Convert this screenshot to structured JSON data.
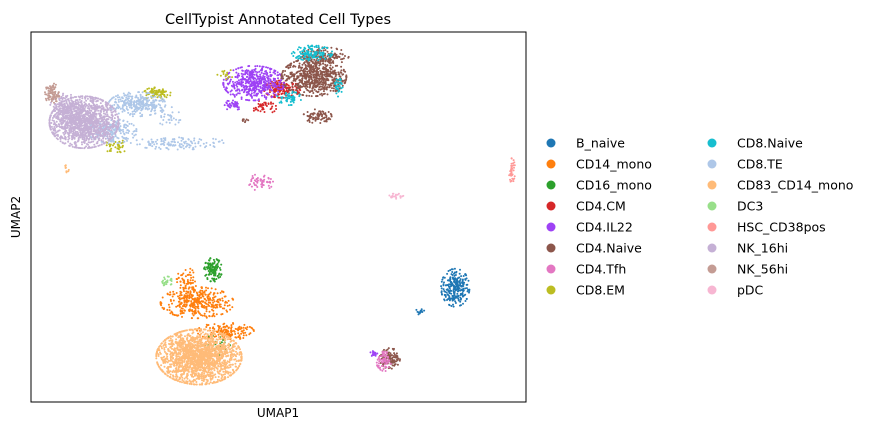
{
  "chart_data": {
    "type": "scatter",
    "title": "CellTypist Annotated Cell Types",
    "xlabel": "UMAP1",
    "ylabel": "UMAP2",
    "ticks_shown": false,
    "grid": false,
    "legend_position": "right",
    "legend_columns": 2,
    "series": [
      {
        "name": "B_naive",
        "color": "#1f77b4",
        "clusters": [
          {
            "cx": 12.6,
            "cy": 1.9,
            "rx": 0.35,
            "ry": 0.55,
            "n": 260
          },
          {
            "cx": 11.6,
            "cy": 1.1,
            "rx": 0.12,
            "ry": 0.08,
            "n": 12
          }
        ]
      },
      {
        "name": "CD14_mono",
        "color": "#ff7f0e",
        "clusters": [
          {
            "cx": 5.3,
            "cy": 1.4,
            "rx": 0.9,
            "ry": 0.45,
            "n": 380
          },
          {
            "cx": 6.1,
            "cy": 0.45,
            "rx": 0.7,
            "ry": 0.25,
            "n": 150
          },
          {
            "cx": 5.0,
            "cy": 2.1,
            "rx": 0.25,
            "ry": 0.4,
            "n": 60
          }
        ]
      },
      {
        "name": "CD16_mono",
        "color": "#2ca02c",
        "clusters": [
          {
            "cx": 5.75,
            "cy": 2.5,
            "rx": 0.22,
            "ry": 0.35,
            "n": 120
          },
          {
            "cx": 5.9,
            "cy": 0.0,
            "rx": 0.4,
            "ry": 0.3,
            "n": 30
          }
        ]
      },
      {
        "name": "CD4.CM",
        "color": "#d62728",
        "clusters": [
          {
            "cx": 7.7,
            "cy": 8.5,
            "rx": 0.45,
            "ry": 0.25,
            "n": 160
          },
          {
            "cx": 7.2,
            "cy": 7.9,
            "rx": 0.3,
            "ry": 0.2,
            "n": 40
          }
        ]
      },
      {
        "name": "CD4.IL22",
        "color": "#9e42f5",
        "clusters": [
          {
            "cx": 6.9,
            "cy": 8.7,
            "rx": 0.75,
            "ry": 0.5,
            "n": 480
          },
          {
            "cx": 6.3,
            "cy": 8.0,
            "rx": 0.25,
            "ry": 0.18,
            "n": 40
          },
          {
            "cx": 10.3,
            "cy": -0.3,
            "rx": 0.1,
            "ry": 0.1,
            "n": 15
          }
        ]
      },
      {
        "name": "CD4.Naive",
        "color": "#8c564b",
        "clusters": [
          {
            "cx": 8.6,
            "cy": 8.9,
            "rx": 0.8,
            "ry": 0.55,
            "n": 620
          },
          {
            "cx": 8.9,
            "cy": 9.6,
            "rx": 0.6,
            "ry": 0.25,
            "n": 150
          },
          {
            "cx": 8.7,
            "cy": 7.6,
            "rx": 0.35,
            "ry": 0.2,
            "n": 80
          },
          {
            "cx": 10.75,
            "cy": -0.45,
            "rx": 0.25,
            "ry": 0.3,
            "n": 110
          },
          {
            "cx": 6.65,
            "cy": 7.45,
            "rx": 0.1,
            "ry": 0.06,
            "n": 8
          }
        ]
      },
      {
        "name": "CD4.Tfh",
        "color": "#e377c2",
        "clusters": [
          {
            "cx": 7.1,
            "cy": 5.4,
            "rx": 0.3,
            "ry": 0.25,
            "n": 55
          },
          {
            "cx": 10.6,
            "cy": -0.55,
            "rx": 0.2,
            "ry": 0.28,
            "n": 70
          }
        ]
      },
      {
        "name": "CD8.EM",
        "color": "#bcbd22",
        "clusters": [
          {
            "cx": 4.15,
            "cy": 8.35,
            "rx": 0.35,
            "ry": 0.18,
            "n": 90
          },
          {
            "cx": 3.0,
            "cy": 6.6,
            "rx": 0.3,
            "ry": 0.2,
            "n": 40
          },
          {
            "cx": 6.1,
            "cy": 9.0,
            "rx": 0.2,
            "ry": 0.15,
            "n": 15
          }
        ]
      },
      {
        "name": "CD8.Naive",
        "color": "#17becf",
        "clusters": [
          {
            "cx": 8.55,
            "cy": 9.7,
            "rx": 0.5,
            "ry": 0.22,
            "n": 130
          },
          {
            "cx": 7.9,
            "cy": 8.2,
            "rx": 0.3,
            "ry": 0.2,
            "n": 50
          },
          {
            "cx": 9.3,
            "cy": 8.6,
            "rx": 0.15,
            "ry": 0.3,
            "n": 30
          }
        ]
      },
      {
        "name": "CD8.TE",
        "color": "#aec7e8",
        "clusters": [
          {
            "cx": 3.6,
            "cy": 8.0,
            "rx": 0.7,
            "ry": 0.35,
            "n": 300
          },
          {
            "cx": 2.9,
            "cy": 7.1,
            "rx": 0.6,
            "ry": 0.35,
            "n": 200
          },
          {
            "cx": 4.8,
            "cy": 6.7,
            "rx": 1.2,
            "ry": 0.18,
            "n": 120
          },
          {
            "cx": 4.5,
            "cy": 7.6,
            "rx": 0.3,
            "ry": 0.3,
            "n": 30
          }
        ]
      },
      {
        "name": "CD83_CD14_mono",
        "color": "#ffbb78",
        "clusters": [
          {
            "cx": 5.35,
            "cy": -0.4,
            "rx": 1.05,
            "ry": 0.8,
            "n": 1800
          },
          {
            "cx": 1.6,
            "cy": 5.8,
            "rx": 0.06,
            "ry": 0.15,
            "n": 10
          }
        ]
      },
      {
        "name": "DC3",
        "color": "#98df8a",
        "clusters": [
          {
            "cx": 4.45,
            "cy": 2.1,
            "rx": 0.12,
            "ry": 0.15,
            "n": 30
          }
        ]
      },
      {
        "name": "HSC_CD38pos",
        "color": "#ff9896",
        "clusters": [
          {
            "cx": 14.2,
            "cy": 5.8,
            "rx": 0.08,
            "ry": 0.35,
            "n": 40
          }
        ]
      },
      {
        "name": "NK_16hi",
        "color": "#c5b0d5",
        "clusters": [
          {
            "cx": 2.1,
            "cy": 7.4,
            "rx": 0.85,
            "ry": 0.75,
            "n": 1300
          },
          {
            "cx": 1.6,
            "cy": 7.9,
            "rx": 0.4,
            "ry": 0.4,
            "n": 200
          }
        ]
      },
      {
        "name": "NK_56hi",
        "color": "#c49c94",
        "clusters": [
          {
            "cx": 1.2,
            "cy": 8.35,
            "rx": 0.18,
            "ry": 0.3,
            "n": 90
          }
        ]
      },
      {
        "name": "pDC",
        "color": "#f7b6d2",
        "clusters": [
          {
            "cx": 10.9,
            "cy": 4.95,
            "rx": 0.2,
            "ry": 0.08,
            "n": 20
          }
        ]
      }
    ],
    "xlim": [
      0.6,
      14.6
    ],
    "ylim": [
      -1.9,
      10.4
    ]
  }
}
